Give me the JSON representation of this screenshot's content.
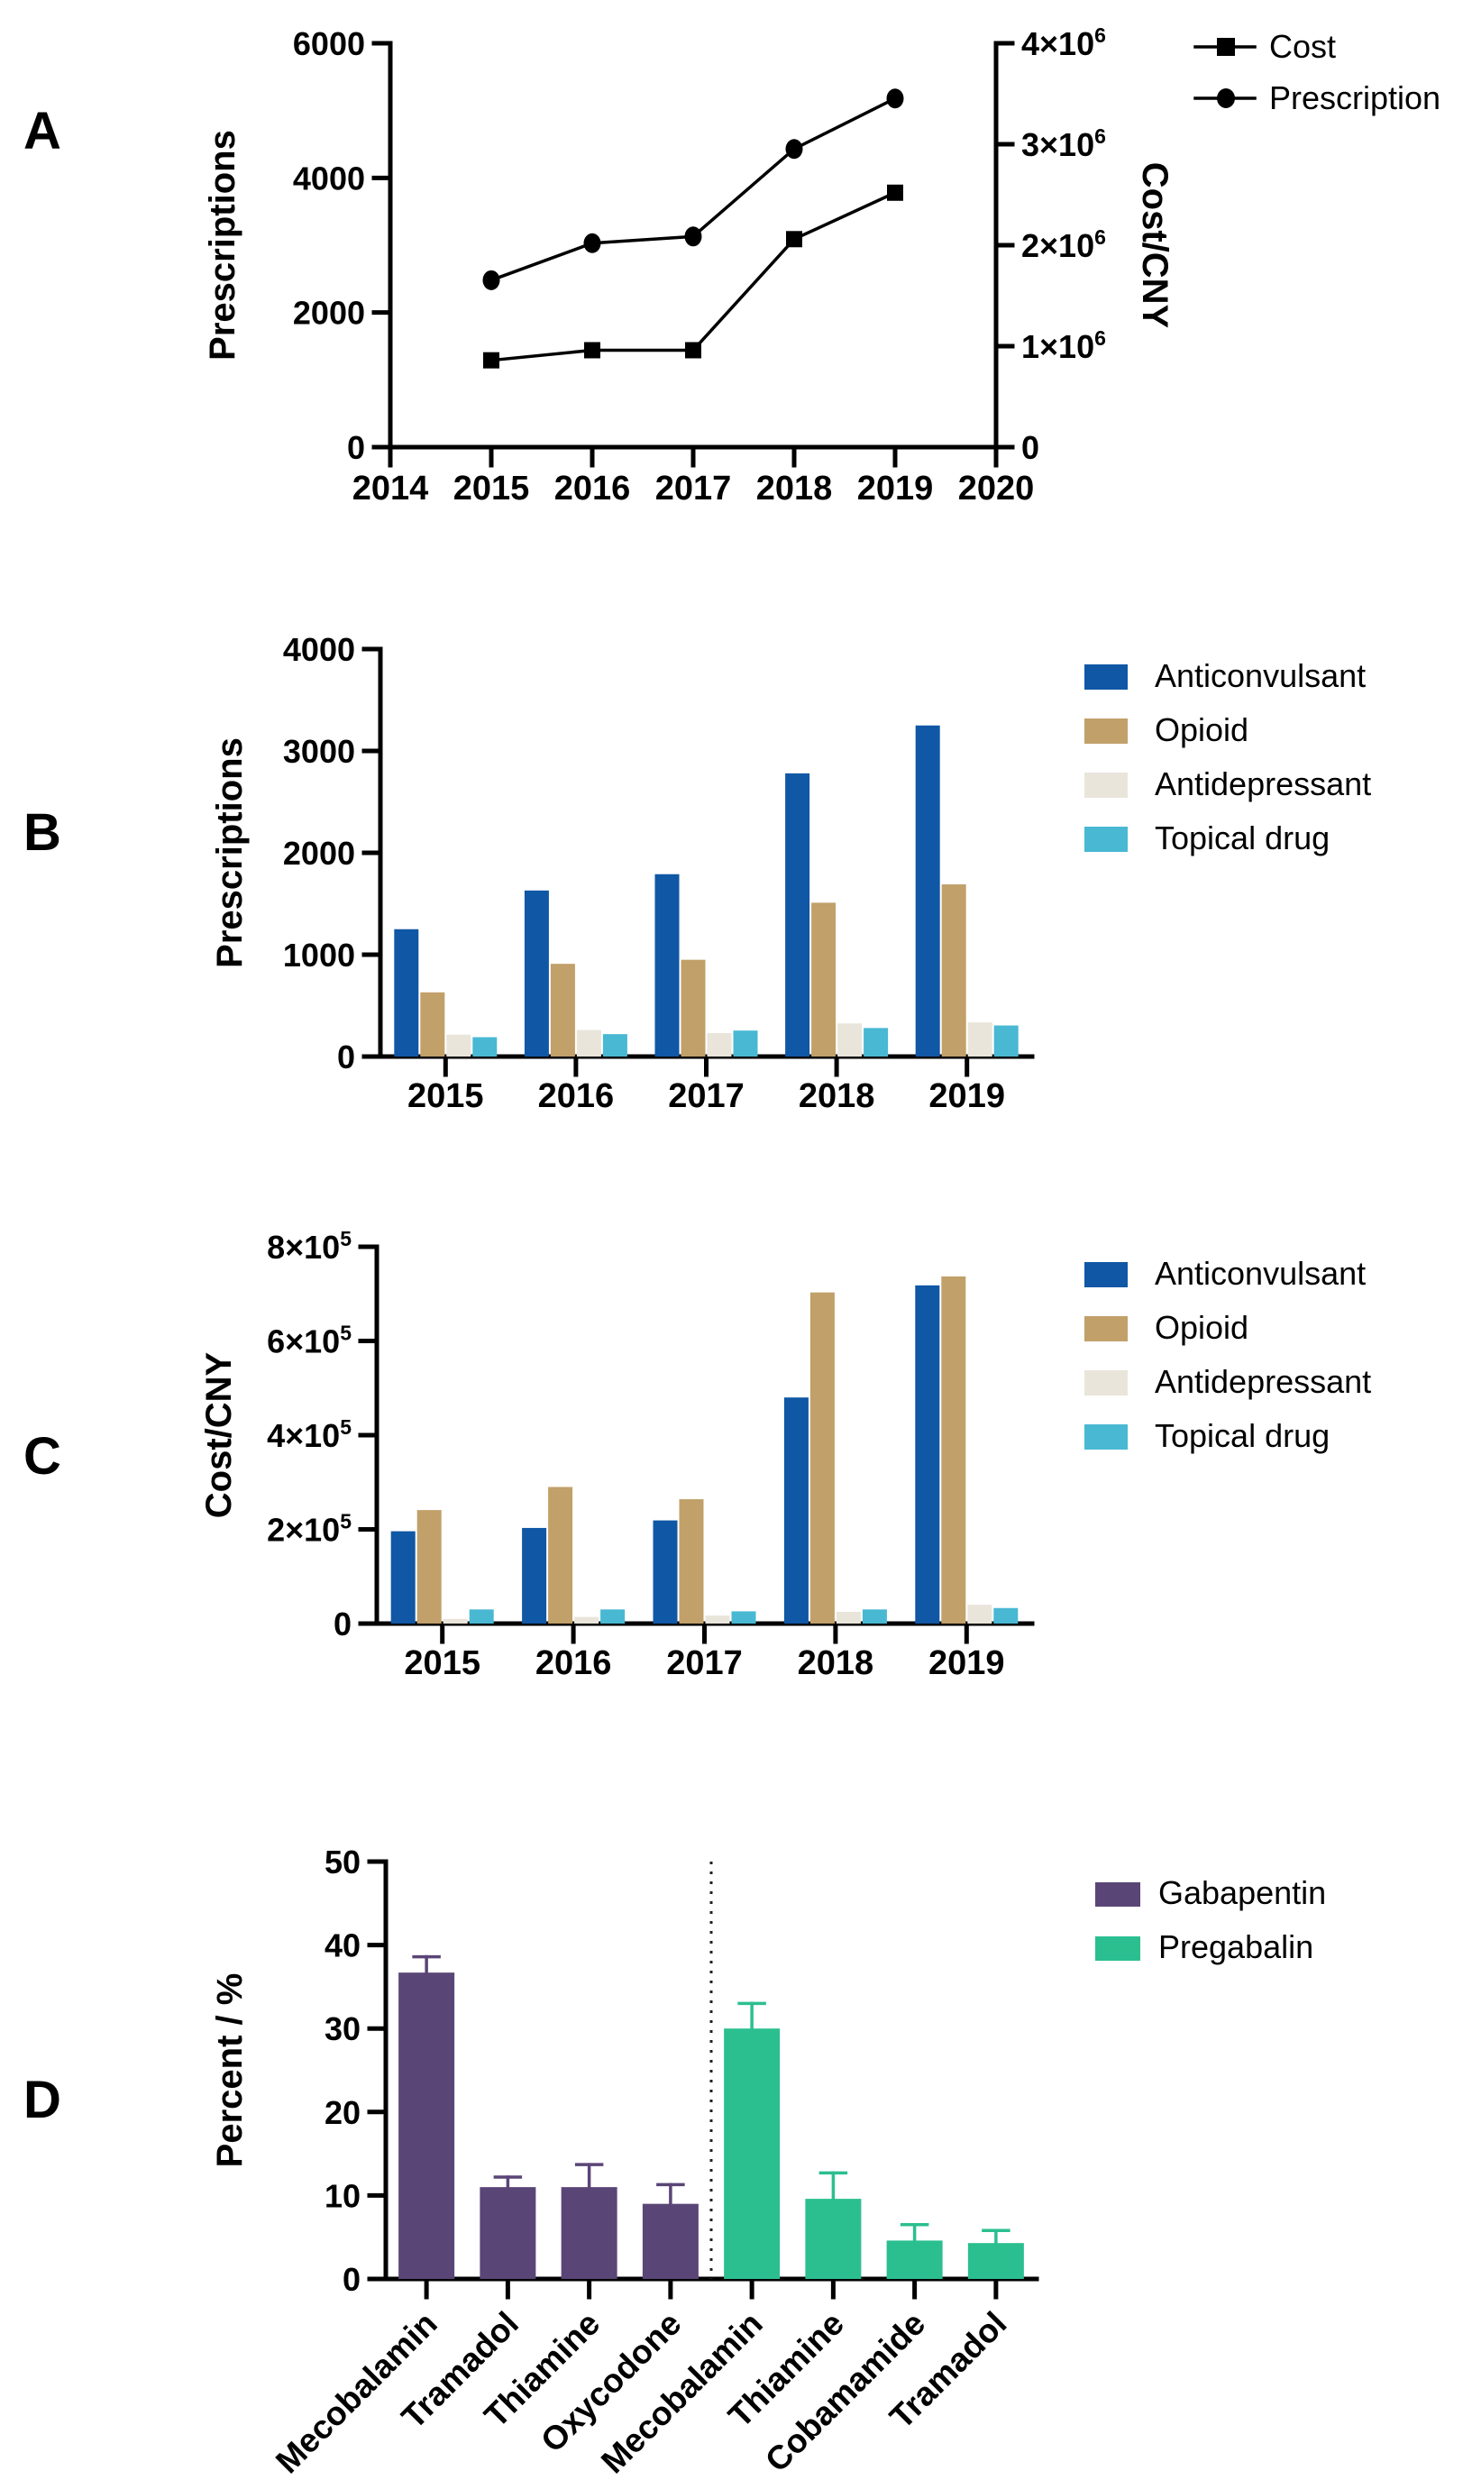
{
  "figure": {
    "background": "#ffffff",
    "panel_letters": {
      "a": "A",
      "b": "B",
      "c": "C",
      "d": "D"
    }
  },
  "colors": {
    "anticonvulsant": "#1057a5",
    "opioid": "#c1a069",
    "antidepressant": "#e9e5da",
    "topical_drug": "#49b8d3",
    "gabapentin": "#5a4577",
    "pregabalin": "#2bbf90",
    "axis": "#000000"
  },
  "chart_data": [
    {
      "id": "A",
      "panel_label": "A",
      "type": "line",
      "x": [
        2015,
        2016,
        2017,
        2018,
        2019
      ],
      "xlim": [
        2014,
        2020
      ],
      "x_ticks": [
        "2014",
        "2015",
        "2016",
        "2017",
        "2018",
        "2019",
        "2020"
      ],
      "left_axis": {
        "label": "Prescriptions",
        "lim": [
          0,
          6000
        ],
        "ticks": [
          {
            "v": 0,
            "label": "0"
          },
          {
            "v": 2000,
            "label": "2000"
          },
          {
            "v": 4000,
            "label": "4000"
          },
          {
            "v": 6000,
            "label": "6000"
          }
        ]
      },
      "right_axis": {
        "label": "Cost/CNY",
        "lim": [
          0,
          4000000
        ],
        "ticks": [
          {
            "v": 0,
            "label": "0"
          },
          {
            "v": 1000000,
            "label": "1×10",
            "sup": "6"
          },
          {
            "v": 2000000,
            "label": "2×10",
            "sup": "6"
          },
          {
            "v": 3000000,
            "label": "3×10",
            "sup": "6"
          },
          {
            "v": 4000000,
            "label": "4×10",
            "sup": "6"
          }
        ]
      },
      "series": [
        {
          "name": "Cost",
          "axis": "right",
          "marker": "square",
          "color": "#000000",
          "values": [
            860000,
            960000,
            960000,
            2060000,
            2520000
          ]
        },
        {
          "name": "Prescription",
          "axis": "left",
          "marker": "circle",
          "color": "#000000",
          "values": [
            2480,
            3030,
            3130,
            4430,
            5180
          ]
        }
      ],
      "legend": [
        "Cost",
        "Prescription"
      ],
      "grid": false,
      "legend_position": "top-right"
    },
    {
      "id": "B",
      "panel_label": "B",
      "type": "bar",
      "categories": [
        "2015",
        "2016",
        "2017",
        "2018",
        "2019"
      ],
      "ylabel": "Prescriptions",
      "ylim": [
        0,
        4000
      ],
      "yticks": [
        {
          "v": 0,
          "label": "0"
        },
        {
          "v": 1000,
          "label": "1000"
        },
        {
          "v": 2000,
          "label": "2000"
        },
        {
          "v": 3000,
          "label": "3000"
        },
        {
          "v": 4000,
          "label": "4000"
        }
      ],
      "series": [
        {
          "name": "Anticonvulsant",
          "color": "#1057a5",
          "values": [
            1250,
            1630,
            1790,
            2780,
            3250
          ]
        },
        {
          "name": "Opioid",
          "color": "#c1a069",
          "values": [
            630,
            910,
            950,
            1510,
            1690
          ]
        },
        {
          "name": "Antidepressant",
          "color": "#e9e5da",
          "values": [
            215,
            260,
            230,
            325,
            335
          ]
        },
        {
          "name": "Topical drug",
          "color": "#49b8d3",
          "values": [
            190,
            220,
            255,
            280,
            305
          ]
        }
      ],
      "grid": false,
      "legend_position": "right"
    },
    {
      "id": "C",
      "panel_label": "C",
      "type": "bar",
      "categories": [
        "2015",
        "2016",
        "2017",
        "2018",
        "2019"
      ],
      "ylabel": "Cost/CNY",
      "ylim": [
        0,
        800000
      ],
      "yticks": [
        {
          "v": 0,
          "label": "0"
        },
        {
          "v": 200000,
          "label": "2×10",
          "sup": "5"
        },
        {
          "v": 400000,
          "label": "4×10",
          "sup": "5"
        },
        {
          "v": 600000,
          "label": "6×10",
          "sup": "5"
        },
        {
          "v": 800000,
          "label": "8×10",
          "sup": "5"
        }
      ],
      "series": [
        {
          "name": "Anticonvulsant",
          "color": "#1057a5",
          "values": [
            196000,
            203000,
            219000,
            480000,
            718000
          ]
        },
        {
          "name": "Opioid",
          "color": "#c1a069",
          "values": [
            241000,
            290000,
            264000,
            703000,
            737000
          ]
        },
        {
          "name": "Antidepressant",
          "color": "#e9e5da",
          "values": [
            10000,
            14000,
            17000,
            25000,
            40000
          ]
        },
        {
          "name": "Topical drug",
          "color": "#49b8d3",
          "values": [
            30000,
            30000,
            26000,
            30000,
            33000
          ]
        }
      ],
      "grid": false,
      "legend_position": "right"
    },
    {
      "id": "D",
      "panel_label": "D",
      "type": "bar",
      "subtype": "bar-with-error",
      "categories": [
        "Mecobalamin",
        "Tramadol",
        "Thiamine",
        "Oxycodone",
        "Mecobalamin",
        "Thiamine",
        "Cobamamide",
        "Tramadol"
      ],
      "ylabel": "Percent / %",
      "ylim": [
        0,
        50
      ],
      "yticks": [
        {
          "v": 0,
          "label": "0"
        },
        {
          "v": 10,
          "label": "10"
        },
        {
          "v": 20,
          "label": "20"
        },
        {
          "v": 30,
          "label": "30"
        },
        {
          "v": 40,
          "label": "40"
        },
        {
          "v": 50,
          "label": "50"
        }
      ],
      "values": [
        36.7,
        11.0,
        11.0,
        9.0,
        30.0,
        9.6,
        4.6,
        4.3
      ],
      "errors": [
        1.9,
        1.2,
        2.7,
        2.3,
        3.0,
        3.1,
        1.9,
        1.5
      ],
      "series_assignment": [
        0,
        0,
        0,
        0,
        1,
        1,
        1,
        1
      ],
      "legend": [
        {
          "name": "Gabapentin",
          "color": "#5a4577"
        },
        {
          "name": "Pregabalin",
          "color": "#2bbf90"
        }
      ],
      "divider_after_index": 3,
      "grid": false,
      "legend_position": "top-right"
    }
  ]
}
